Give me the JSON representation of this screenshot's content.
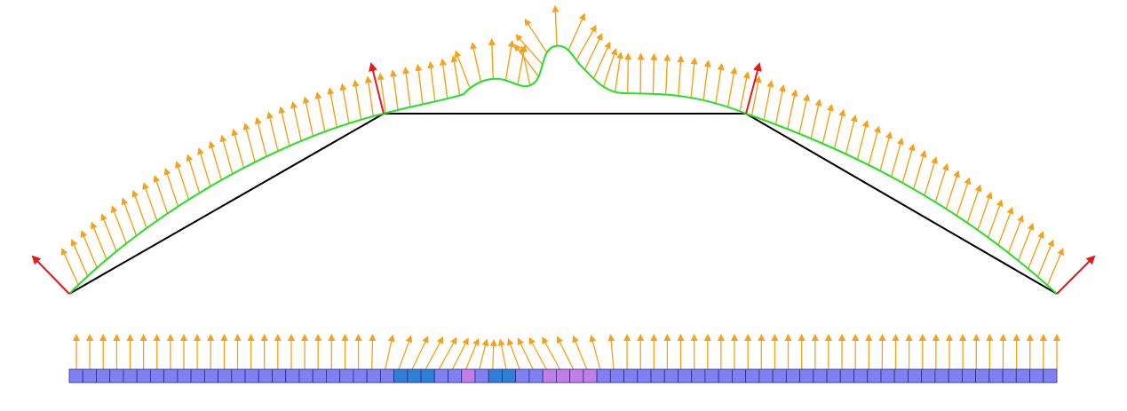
{
  "colors": {
    "background": "#ffffff",
    "polygon_edge": "#000000",
    "curve": "#22e122",
    "vertex_normal": "#e81818",
    "sample_arrow": "#f5a11a",
    "cell_default": "#8080f0",
    "cell_blue": "#2f7fd6",
    "cell_violet": "#c07ee6",
    "cell_edge": "#2a2a88"
  },
  "icons": {
    "normal_arrow": "arrow-icon"
  },
  "strip": {
    "cell_count": 73,
    "blue_cells": [
      24,
      25,
      26,
      31,
      32
    ],
    "violet_cells": [
      29,
      35,
      36,
      37,
      38
    ]
  },
  "arrow_rows": {
    "curve_arrow_count": 90,
    "strip_arrow_count": 74
  }
}
